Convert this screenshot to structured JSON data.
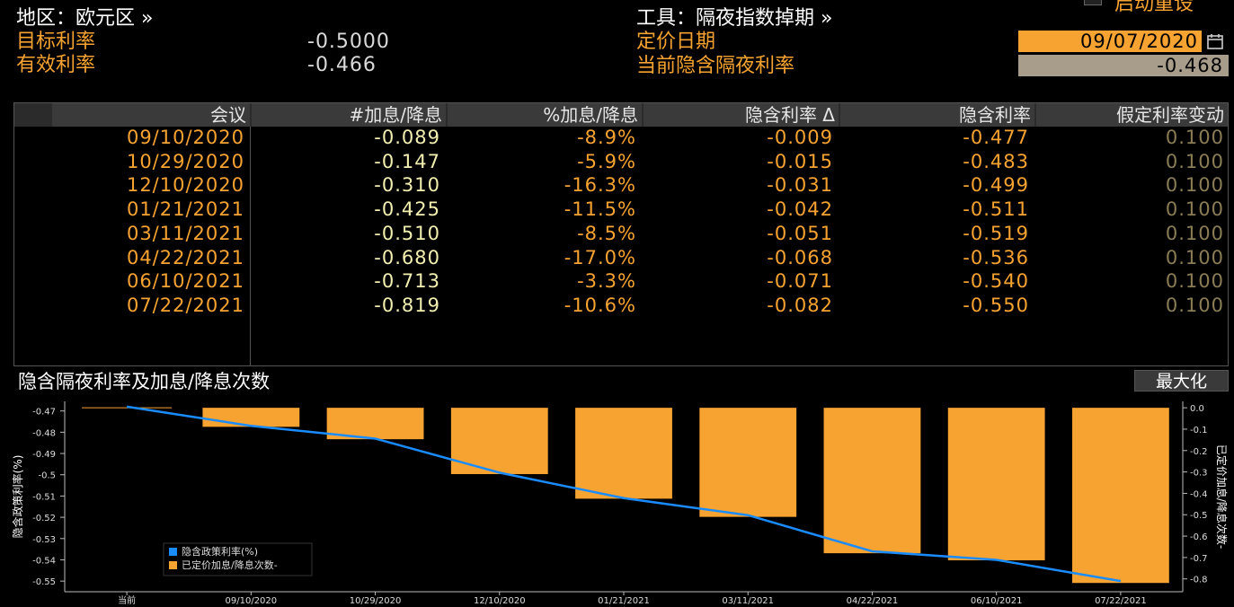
{
  "header": {
    "region_label": "地区：欧元区 »",
    "tool_label": "工具：隔夜指数掉期 »",
    "target_rate_label": "目标利率",
    "target_rate_value": "-0.5000",
    "effective_rate_label": "有效利率",
    "effective_rate_value": "-0.466",
    "pricing_date_label": "定价日期",
    "pricing_date_value": "09/07/2020",
    "implied_overnight_label": "当前隐含隔夜利率",
    "implied_overnight_value": "-0.468",
    "top_cut_text": "启动重设"
  },
  "table": {
    "headers": [
      "会议",
      "#加息/降息",
      "%加息/降息",
      "隐含利率 Δ",
      "隐含利率",
      "假定利率变动"
    ],
    "rows": [
      [
        "09/10/2020",
        "-0.089",
        "-8.9%",
        "-0.009",
        "-0.477",
        "0.100"
      ],
      [
        "10/29/2020",
        "-0.147",
        "-5.9%",
        "-0.015",
        "-0.483",
        "0.100"
      ],
      [
        "12/10/2020",
        "-0.310",
        "-16.3%",
        "-0.031",
        "-0.499",
        "0.100"
      ],
      [
        "01/21/2021",
        "-0.425",
        "-11.5%",
        "-0.042",
        "-0.511",
        "0.100"
      ],
      [
        "03/11/2021",
        "-0.510",
        "-8.5%",
        "-0.051",
        "-0.519",
        "0.100"
      ],
      [
        "04/22/2021",
        "-0.680",
        "-17.0%",
        "-0.068",
        "-0.536",
        "0.100"
      ],
      [
        "06/10/2021",
        "-0.713",
        "-3.3%",
        "-0.071",
        "-0.540",
        "0.100"
      ],
      [
        "07/22/2021",
        "-0.819",
        "-10.6%",
        "-0.082",
        "-0.550",
        "0.100"
      ]
    ]
  },
  "chart_section": {
    "title": "隐含隔夜利率及加息/降息次数",
    "maximize_label": "最大化"
  },
  "chart_data": {
    "type": "bar",
    "categories": [
      "当前",
      "09/10/2020",
      "10/29/2020",
      "12/10/2020",
      "01/21/2021",
      "03/11/2021",
      "04/22/2021",
      "06/10/2021",
      "07/22/2021"
    ],
    "series": [
      {
        "name": "隐含政策利率(%)",
        "type": "line",
        "axis": "left",
        "color": "#1a8cff",
        "values": [
          -0.468,
          -0.477,
          -0.483,
          -0.499,
          -0.511,
          -0.519,
          -0.536,
          -0.54,
          -0.55
        ]
      },
      {
        "name": "已定价加息/降息次数-",
        "type": "bar",
        "axis": "right",
        "color": "#f7a331",
        "values": [
          null,
          -0.089,
          -0.147,
          -0.31,
          -0.425,
          -0.51,
          -0.68,
          -0.713,
          -0.819
        ]
      }
    ],
    "ylabel": "隐含政策利率(%)",
    "y2label": "已定价加息/降息次数-",
    "ylim": [
      -0.555,
      -0.4655
    ],
    "y2lim": [
      -0.86,
      0.03
    ],
    "yticks": [
      "-0.47",
      "-0.48",
      "-0.49",
      "-0.5",
      "-0.51",
      "-0.52",
      "-0.53",
      "-0.54",
      "-0.55"
    ],
    "y2ticks": [
      "0.0",
      "-0.1",
      "-0.2",
      "-0.3",
      "-0.4",
      "-0.5",
      "-0.6",
      "-0.7",
      "-0.8"
    ],
    "legend_position": "bottom-left",
    "grid": false
  },
  "colors": {
    "accent": "#f7a331",
    "line": "#1a8cff",
    "background": "#000000"
  }
}
